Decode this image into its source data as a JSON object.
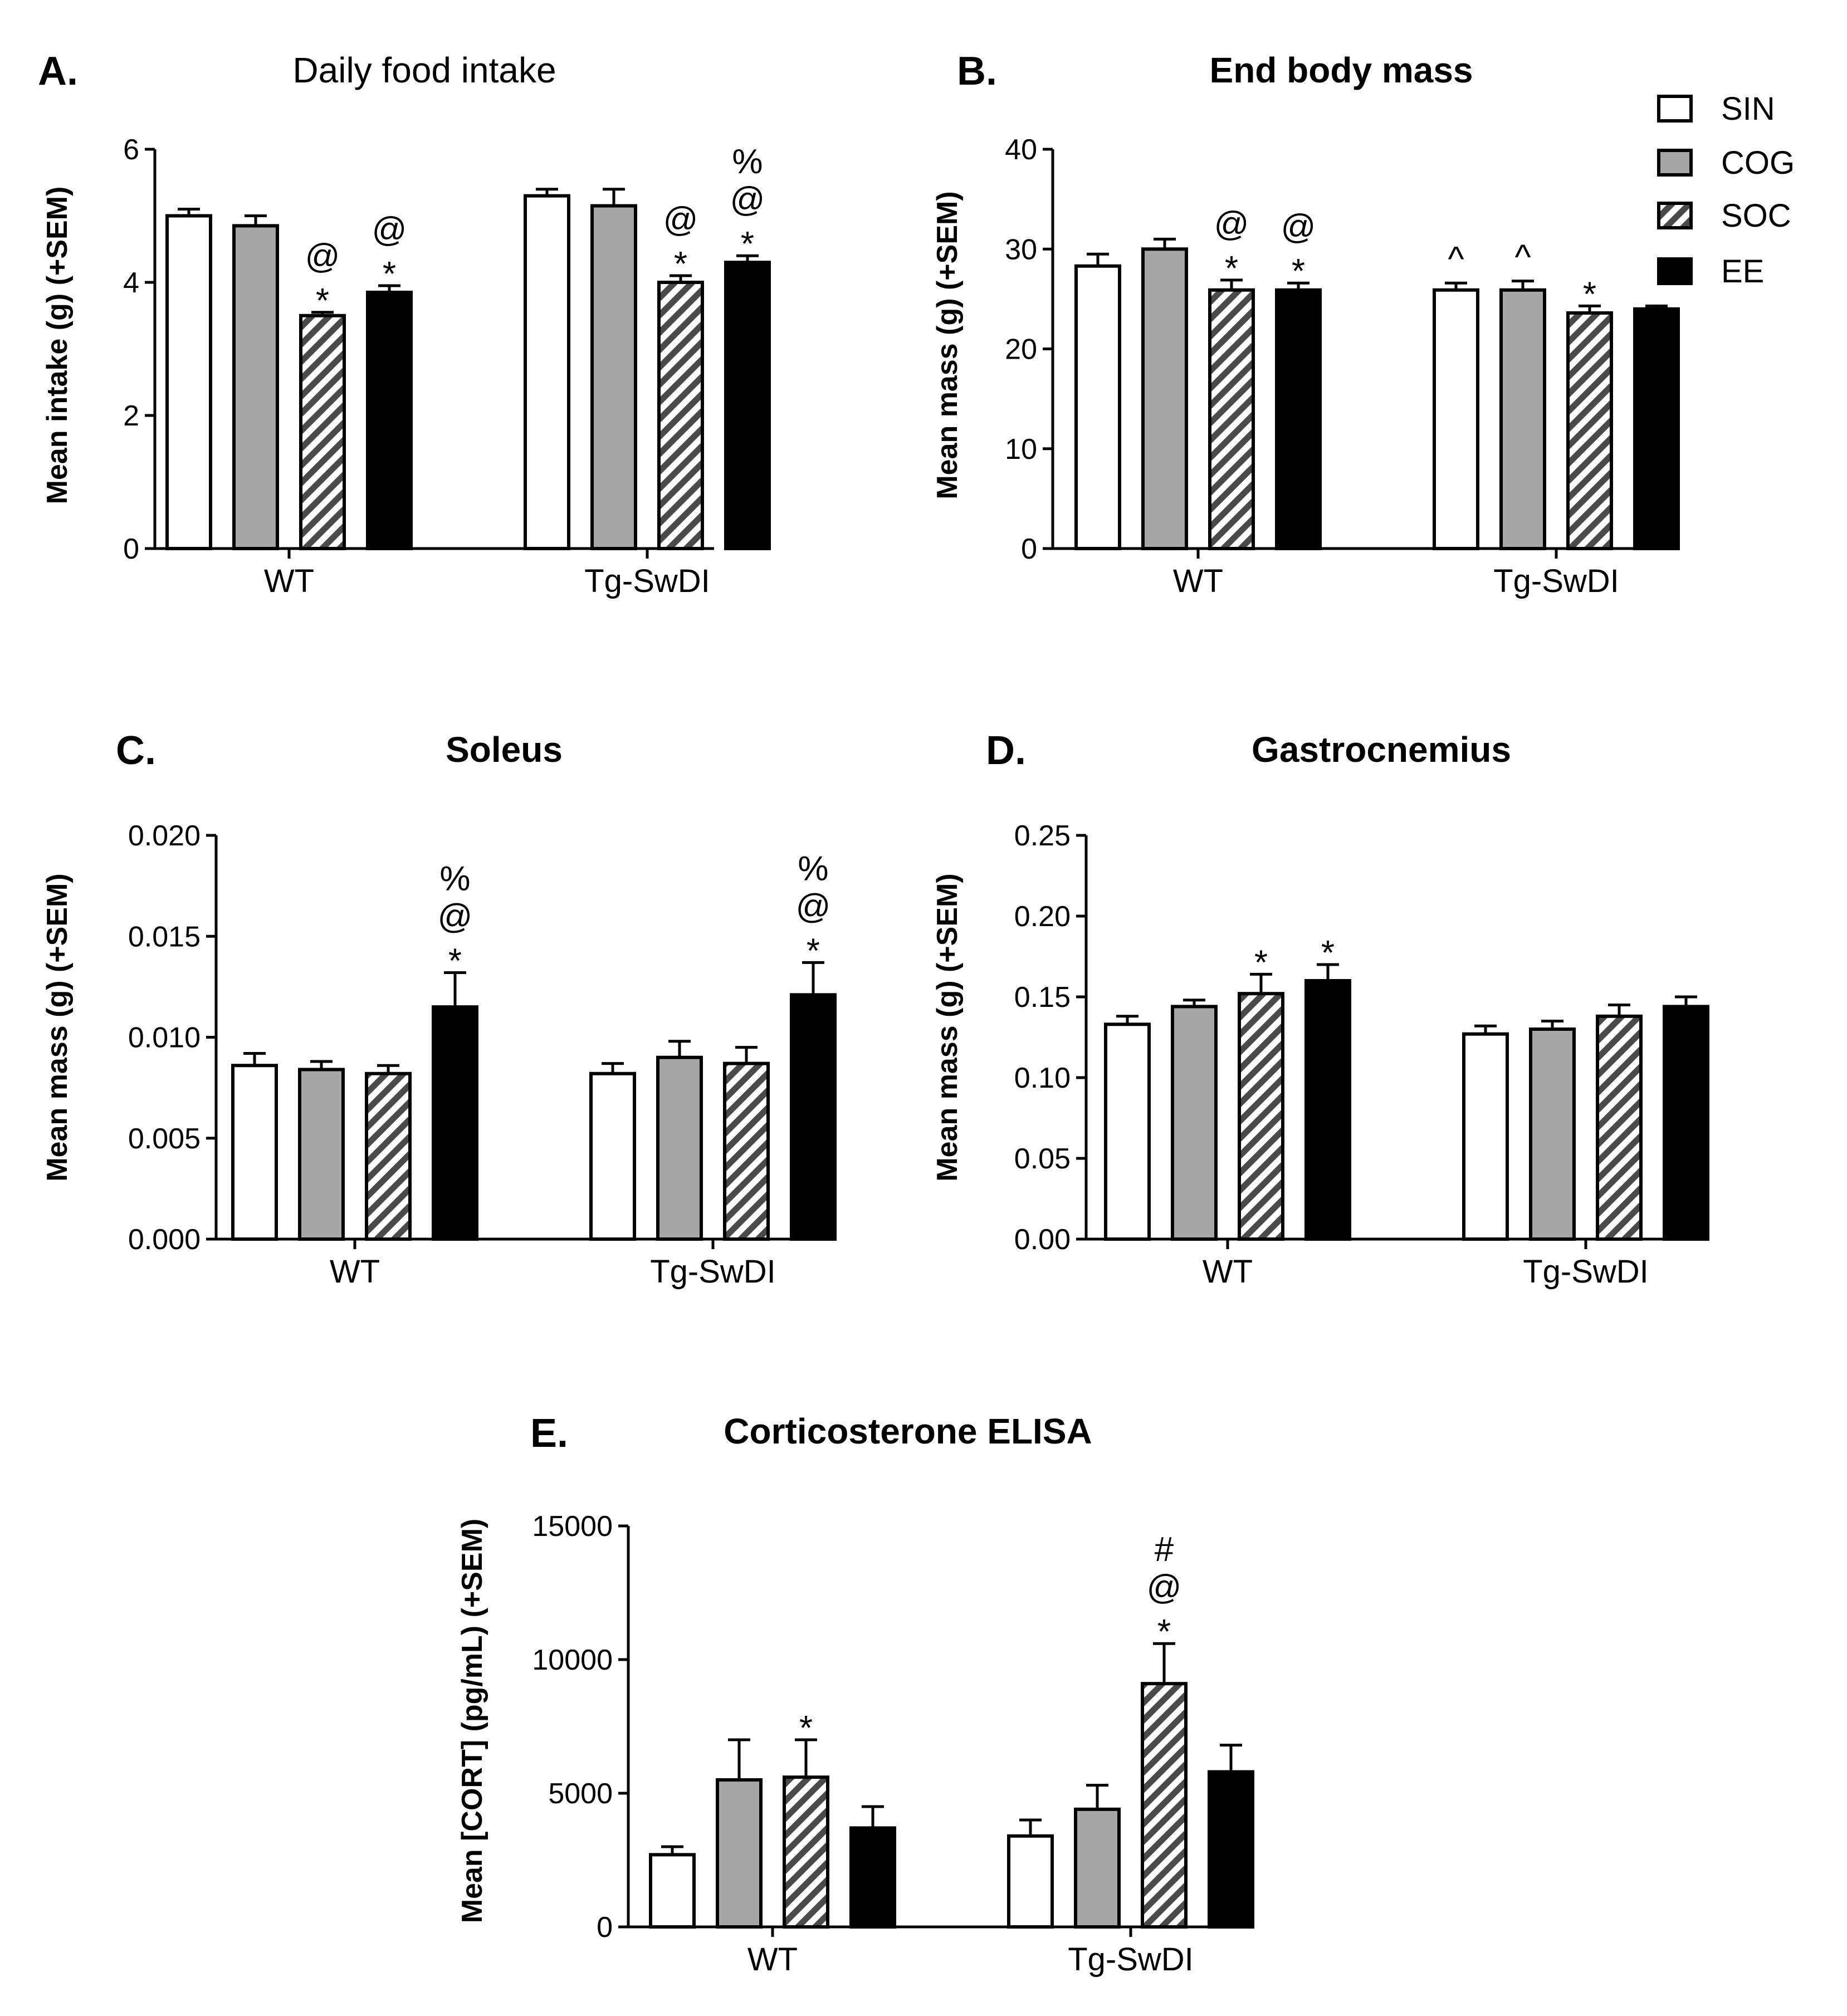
{
  "colors": {
    "SIN": "#ffffff",
    "COG": "#a6a6a6",
    "SOC": "hatch",
    "EE": "#000000"
  },
  "legend": [
    {
      "key": "SIN",
      "label": "SIN"
    },
    {
      "key": "COG",
      "label": "COG"
    },
    {
      "key": "SOC",
      "label": "SOC"
    },
    {
      "key": "EE",
      "label": "EE"
    }
  ],
  "chart_data": [
    {
      "id": "A",
      "letter": "A.",
      "type": "bar",
      "title": "Daily food intake",
      "xlabel": "",
      "ylabel": "Mean intake (g) (+SEM)",
      "ylim": [
        0,
        6
      ],
      "yticks": [
        "0",
        "2",
        "4",
        "6"
      ],
      "categories": [
        "WT",
        "Tg-SwDI"
      ],
      "series": [
        {
          "name": "SIN",
          "values": [
            5.0,
            5.3
          ],
          "sem": [
            0.1,
            0.1
          ]
        },
        {
          "name": "COG",
          "values": [
            4.85,
            5.15
          ],
          "sem": [
            0.15,
            0.25
          ]
        },
        {
          "name": "SOC",
          "values": [
            3.5,
            4.0
          ],
          "sem": [
            0.05,
            0.1
          ]
        },
        {
          "name": "EE",
          "values": [
            3.85,
            4.3
          ],
          "sem": [
            0.1,
            0.1
          ]
        }
      ],
      "annotations": [
        {
          "category": 0,
          "series": 2,
          "marks": [
            "@",
            "*"
          ]
        },
        {
          "category": 0,
          "series": 3,
          "marks": [
            "@",
            "*"
          ]
        },
        {
          "category": 1,
          "series": 2,
          "marks": [
            "@",
            "*"
          ]
        },
        {
          "category": 1,
          "series": 3,
          "marks": [
            "%",
            "@",
            "*"
          ]
        }
      ]
    },
    {
      "id": "B",
      "letter": "B.",
      "type": "bar",
      "title": "End body mass",
      "xlabel": "",
      "ylabel": "Mean mass (g) (+SEM)",
      "ylim": [
        0,
        40
      ],
      "yticks": [
        "0",
        "10",
        "20",
        "30",
        "40"
      ],
      "categories": [
        "WT",
        "Tg-SwDI"
      ],
      "series": [
        {
          "name": "SIN",
          "values": [
            28.3,
            25.9
          ],
          "sem": [
            1.2,
            0.7
          ]
        },
        {
          "name": "COG",
          "values": [
            30.0,
            25.9
          ],
          "sem": [
            1.0,
            0.9
          ]
        },
        {
          "name": "SOC",
          "values": [
            25.9,
            23.6
          ],
          "sem": [
            1.0,
            0.7
          ]
        },
        {
          "name": "EE",
          "values": [
            25.9,
            24.0
          ],
          "sem": [
            0.7,
            0.3
          ]
        }
      ],
      "annotations": [
        {
          "category": 0,
          "series": 2,
          "marks": [
            "@",
            "*"
          ]
        },
        {
          "category": 0,
          "series": 3,
          "marks": [
            "@",
            "*"
          ]
        },
        {
          "category": 1,
          "series": 0,
          "marks": [
            "^"
          ]
        },
        {
          "category": 1,
          "series": 1,
          "marks": [
            "^"
          ]
        },
        {
          "category": 1,
          "series": 2,
          "marks": [
            "*"
          ]
        }
      ]
    },
    {
      "id": "C",
      "letter": "C.",
      "type": "bar",
      "title": "Soleus",
      "xlabel": "",
      "ylabel": "Mean mass (g) (+SEM)",
      "ylim": [
        0,
        0.02
      ],
      "yticks": [
        "0.000",
        "0.005",
        "0.010",
        "0.015",
        "0.020"
      ],
      "categories": [
        "WT",
        "Tg-SwDI"
      ],
      "series": [
        {
          "name": "SIN",
          "values": [
            0.0086,
            0.0082
          ],
          "sem": [
            0.0006,
            0.0005
          ]
        },
        {
          "name": "COG",
          "values": [
            0.0084,
            0.009
          ],
          "sem": [
            0.0004,
            0.0008
          ]
        },
        {
          "name": "SOC",
          "values": [
            0.0082,
            0.0087
          ],
          "sem": [
            0.0004,
            0.0008
          ]
        },
        {
          "name": "EE",
          "values": [
            0.0115,
            0.0121
          ],
          "sem": [
            0.0017,
            0.0016
          ]
        }
      ],
      "annotations": [
        {
          "category": 0,
          "series": 3,
          "marks": [
            "%",
            "@",
            "*"
          ]
        },
        {
          "category": 1,
          "series": 3,
          "marks": [
            "%",
            "@",
            "*"
          ]
        }
      ]
    },
    {
      "id": "D",
      "letter": "D.",
      "type": "bar",
      "title": "Gastrocnemius",
      "xlabel": "",
      "ylabel": "Mean mass (g) (+SEM)",
      "ylim": [
        0,
        0.25
      ],
      "yticks": [
        "0.00",
        "0.05",
        "0.10",
        "0.15",
        "0.20",
        "0.25"
      ],
      "categories": [
        "WT",
        "Tg-SwDI"
      ],
      "series": [
        {
          "name": "SIN",
          "values": [
            0.133,
            0.127
          ],
          "sem": [
            0.005,
            0.005
          ]
        },
        {
          "name": "COG",
          "values": [
            0.144,
            0.13
          ],
          "sem": [
            0.004,
            0.005
          ]
        },
        {
          "name": "SOC",
          "values": [
            0.152,
            0.138
          ],
          "sem": [
            0.012,
            0.007
          ]
        },
        {
          "name": "EE",
          "values": [
            0.16,
            0.144
          ],
          "sem": [
            0.01,
            0.006
          ]
        }
      ],
      "annotations": [
        {
          "category": 0,
          "series": 2,
          "marks": [
            "*"
          ]
        },
        {
          "category": 0,
          "series": 3,
          "marks": [
            "*"
          ]
        }
      ]
    },
    {
      "id": "E",
      "letter": "E.",
      "type": "bar",
      "title": "Corticosterone ELISA",
      "xlabel": "",
      "ylabel": "Mean [CORT] (pg/mL) (+SEM)",
      "ylim": [
        0,
        15000
      ],
      "yticks": [
        "0",
        "5000",
        "10000",
        "15000"
      ],
      "categories": [
        "WT",
        "Tg-SwDI"
      ],
      "series": [
        {
          "name": "SIN",
          "values": [
            2700,
            3400
          ],
          "sem": [
            300,
            600
          ]
        },
        {
          "name": "COG",
          "values": [
            5500,
            4400
          ],
          "sem": [
            1500,
            900
          ]
        },
        {
          "name": "SOC",
          "values": [
            5600,
            9100
          ],
          "sem": [
            1400,
            1500
          ]
        },
        {
          "name": "EE",
          "values": [
            3700,
            5800
          ],
          "sem": [
            800,
            1000
          ]
        }
      ],
      "annotations": [
        {
          "category": 0,
          "series": 2,
          "marks": [
            "*"
          ]
        },
        {
          "category": 1,
          "series": 2,
          "marks": [
            "#",
            "@",
            "*"
          ]
        }
      ]
    }
  ]
}
